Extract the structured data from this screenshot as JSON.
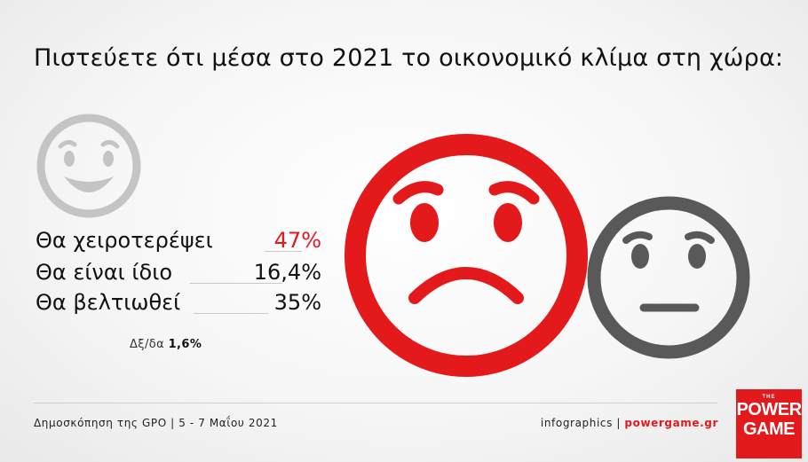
{
  "title": "Πιστεύετε ότι μέσα στο 2021 το οικονομικό κλίμα στη χώρα:",
  "chart_data": {
    "type": "table",
    "title": "Πιστεύετε ότι μέσα στο 2021 το οικονομικό κλίμα στη χώρα:",
    "categories": [
      "Θα χειροτερέψει",
      "Θα είναι ίδιο",
      "Θα βελτιωθεί",
      "Δξ/δα"
    ],
    "values": [
      47,
      16.4,
      35,
      1.6
    ],
    "rows": [
      {
        "label": "Θα χειροτερέψει",
        "value_text": "47%",
        "value": 47,
        "highlight": true
      },
      {
        "label": "Θα είναι ίδιο",
        "value_text": "16,4%",
        "value": 16.4,
        "highlight": false
      },
      {
        "label": "Θα βελτιωθεί",
        "value_text": "35%",
        "value": 35,
        "highlight": false
      }
    ],
    "dk_label": "Δξ/δα",
    "dk_value": "1,6%",
    "dk_value_num": 1.6
  },
  "icons": [
    "smiling-face-icon",
    "sad-face-icon",
    "neutral-face-icon"
  ],
  "colors": {
    "accent": "#e3191c",
    "neutral": "#595959",
    "light_face": "#c4c4c4"
  },
  "footer": {
    "source": "Δημοσκόπηση της GPO | 5 - 7 Μαΐου 2021",
    "credit_prefix": "infographics |",
    "credit_site": "powergame.gr"
  },
  "logo": {
    "the": "THE",
    "line1": "POWER",
    "line2": "GAME"
  }
}
